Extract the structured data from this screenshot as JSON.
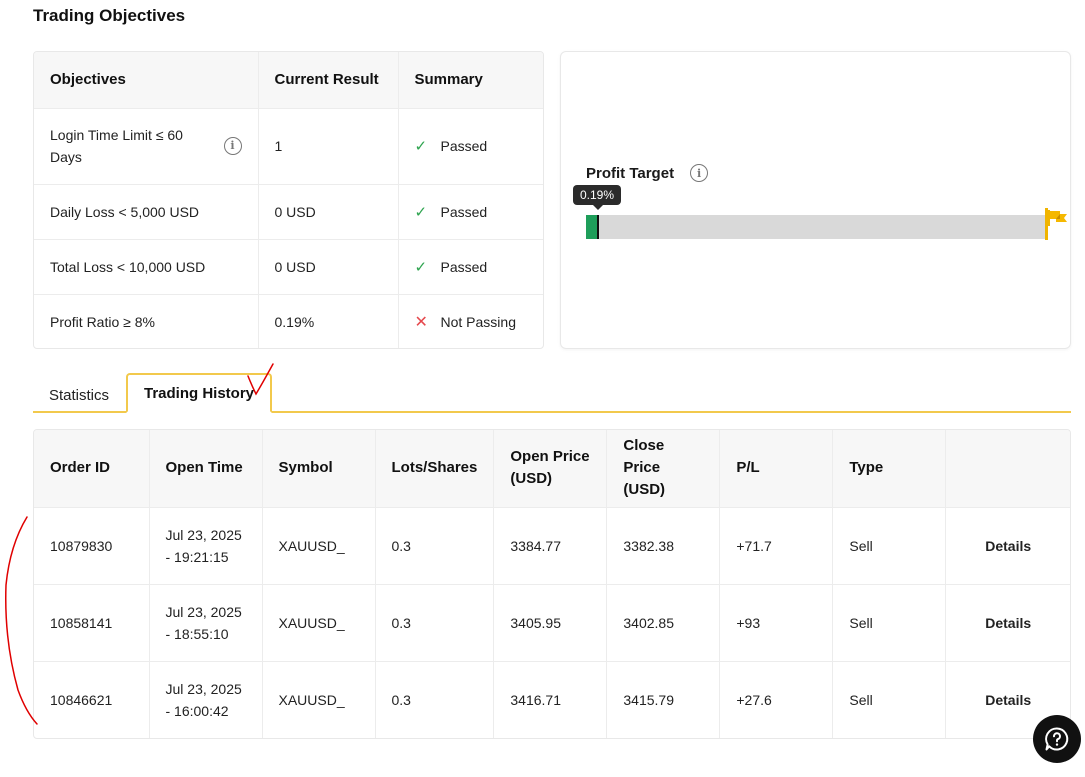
{
  "page_title": "Trading Objectives",
  "objectives": {
    "headers": [
      "Objectives",
      "Current Result",
      "Summary"
    ],
    "rows": [
      {
        "objective": "Login Time Limit ≤ 60 Days",
        "result": "1",
        "summary": "Passed",
        "status": "pass",
        "has_info": true
      },
      {
        "objective": "Daily Loss < 5,000 USD",
        "result": "0 USD",
        "summary": "Passed",
        "status": "pass"
      },
      {
        "objective": "Total Loss < 10,000 USD",
        "result": "0 USD",
        "summary": "Passed",
        "status": "pass"
      },
      {
        "objective": "Profit Ratio ≥ 8%",
        "result": "0.19%",
        "summary": "Not Passing",
        "status": "fail"
      }
    ]
  },
  "profit_target": {
    "label": "Profit Target",
    "progress_label": "0.19%",
    "progress_percent": 0.19
  },
  "tabs": {
    "statistics": "Statistics",
    "history": "Trading History",
    "active": "history"
  },
  "history": {
    "headers": [
      "Order ID",
      "Open Time",
      "Symbol",
      "Lots/Shares",
      "Open Price (USD)",
      "Close Price (USD)",
      "P/L",
      "Type",
      ""
    ],
    "rows": [
      {
        "order_id": "10879830",
        "open_time_date": "Jul 23, 2025",
        "open_time_time": "- 19:21:15",
        "symbol": "XAUUSD_",
        "lots": "0.3",
        "open_price": "3384.77",
        "close_price": "3382.38",
        "pl": "+71.7",
        "type": "Sell",
        "action": "Details"
      },
      {
        "order_id": "10858141",
        "open_time_date": "Jul 23, 2025",
        "open_time_time": "- 18:55:10",
        "symbol": "XAUUSD_",
        "lots": "0.3",
        "open_price": "3405.95",
        "close_price": "3402.85",
        "pl": "+93",
        "type": "Sell",
        "action": "Details"
      },
      {
        "order_id": "10846621",
        "open_time_date": "Jul 23, 2025",
        "open_time_time": "- 16:00:42",
        "symbol": "XAUUSD_",
        "lots": "0.3",
        "open_price": "3416.71",
        "close_price": "3415.79",
        "pl": "+27.6",
        "type": "Sell",
        "action": "Details"
      }
    ]
  },
  "colors": {
    "accent": "#f2c94c",
    "pass": "#2ea44f",
    "fail": "#e5484d",
    "profit": "#3cb043",
    "annotation": "#e00000"
  },
  "icons": {
    "info": "info-icon",
    "pass": "check-icon",
    "fail": "cross-icon",
    "flag": "flag-icon",
    "help": "help-chat-icon"
  }
}
